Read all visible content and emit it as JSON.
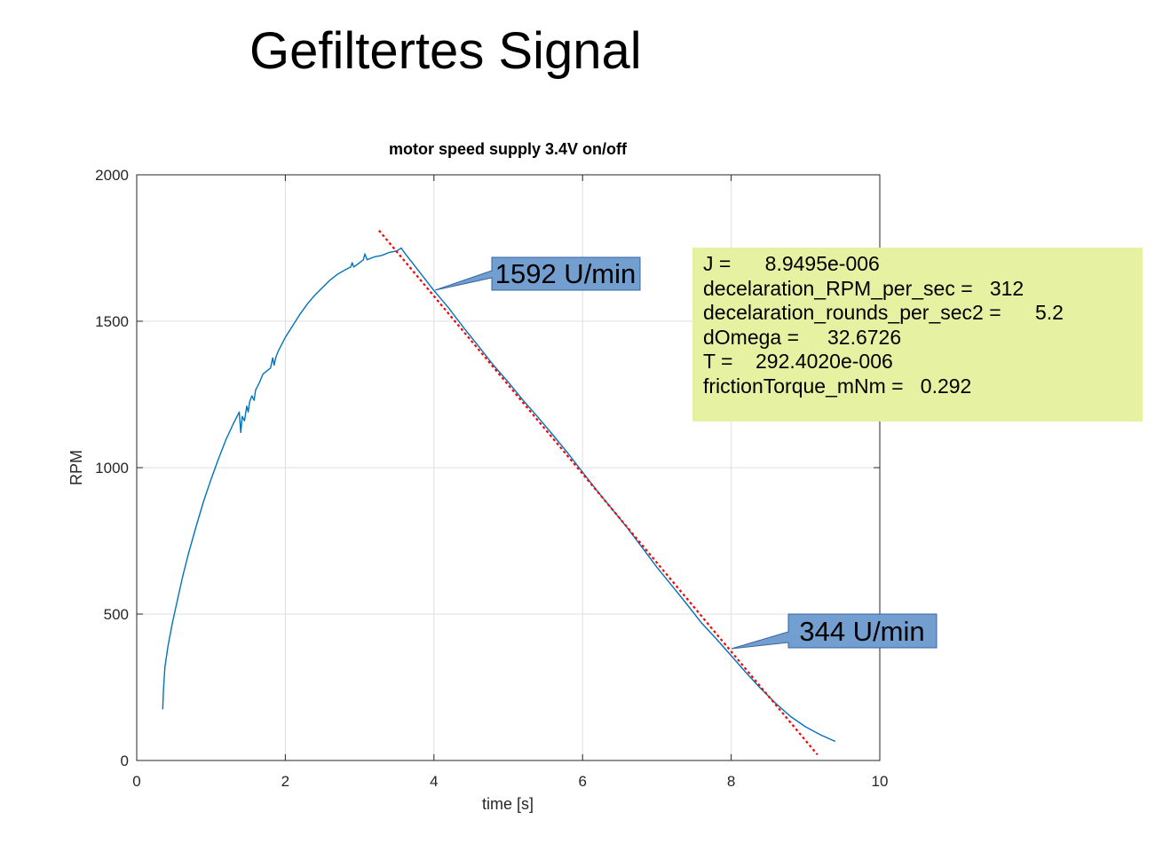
{
  "slide": {
    "title": "Gefiltertes Signal"
  },
  "chart_data": {
    "type": "line",
    "title": "motor speed supply 3.4V on/off",
    "xlabel": "time [s]",
    "ylabel": "RPM",
    "xlim": [
      0,
      10
    ],
    "ylim": [
      0,
      2000
    ],
    "xticks": [
      0,
      2,
      4,
      6,
      8,
      10
    ],
    "yticks": [
      0,
      500,
      1000,
      1500,
      2000
    ],
    "grid": true,
    "legend": "none",
    "colors": {
      "series": "#0072bd",
      "fit": "#ff0000"
    },
    "series": [
      {
        "style": "solid",
        "x": [
          0.35,
          0.36,
          0.38,
          0.42,
          0.48,
          0.55,
          0.62,
          0.7,
          0.8,
          0.9,
          1.0,
          1.1,
          1.2,
          1.3,
          1.38,
          1.4,
          1.42,
          1.45,
          1.48,
          1.5,
          1.52,
          1.55,
          1.58,
          1.6,
          1.62,
          1.65,
          1.7,
          1.75,
          1.8,
          1.83,
          1.85,
          1.87,
          1.9,
          2.0,
          2.1,
          2.2,
          2.3,
          2.4,
          2.5,
          2.6,
          2.7,
          2.8,
          2.88,
          2.9,
          2.92,
          3.0,
          3.05,
          3.07,
          3.1,
          3.2,
          3.3,
          3.4,
          3.5,
          3.56,
          3.6,
          3.8,
          4.0,
          4.2,
          4.4,
          4.6,
          4.8,
          5.0,
          5.2,
          5.4,
          5.6,
          5.8,
          6.0,
          6.2,
          6.4,
          6.6,
          6.8,
          7.0,
          7.2,
          7.4,
          7.6,
          7.8,
          8.0,
          8.2,
          8.4,
          8.6,
          8.8,
          9.0,
          9.2,
          9.4
        ],
        "y": [
          175,
          240,
          320,
          390,
          470,
          550,
          630,
          710,
          800,
          885,
          960,
          1030,
          1095,
          1150,
          1190,
          1120,
          1175,
          1160,
          1210,
          1190,
          1225,
          1245,
          1230,
          1265,
          1275,
          1290,
          1320,
          1330,
          1340,
          1375,
          1350,
          1375,
          1395,
          1445,
          1485,
          1525,
          1560,
          1590,
          1615,
          1640,
          1660,
          1675,
          1685,
          1700,
          1685,
          1700,
          1710,
          1730,
          1710,
          1720,
          1725,
          1735,
          1740,
          1750,
          1735,
          1670,
          1605,
          1545,
          1478,
          1415,
          1350,
          1292,
          1230,
          1172,
          1112,
          1050,
          985,
          920,
          858,
          795,
          728,
          660,
          598,
          535,
          470,
          415,
          358,
          300,
          245,
          195,
          150,
          115,
          88,
          65
        ]
      },
      {
        "style": "dotted",
        "x": [
          3.26,
          9.16
        ],
        "y": [
          1810,
          20
        ]
      }
    ],
    "annotations": [
      {
        "text": "1592 U/min",
        "point": [
          4.0,
          1592
        ]
      },
      {
        "text": "344 U/min",
        "point": [
          8.0,
          383
        ]
      }
    ]
  },
  "info": {
    "lines": [
      "J =      8.9495e-006",
      "decelaration_RPM_per_sec =   312",
      "decelaration_rounds_per_sec2 =      5.2",
      "dOmega =     32.6726",
      "T =    292.4020e-006",
      "frictionTorque_mNm =   0.292"
    ]
  }
}
